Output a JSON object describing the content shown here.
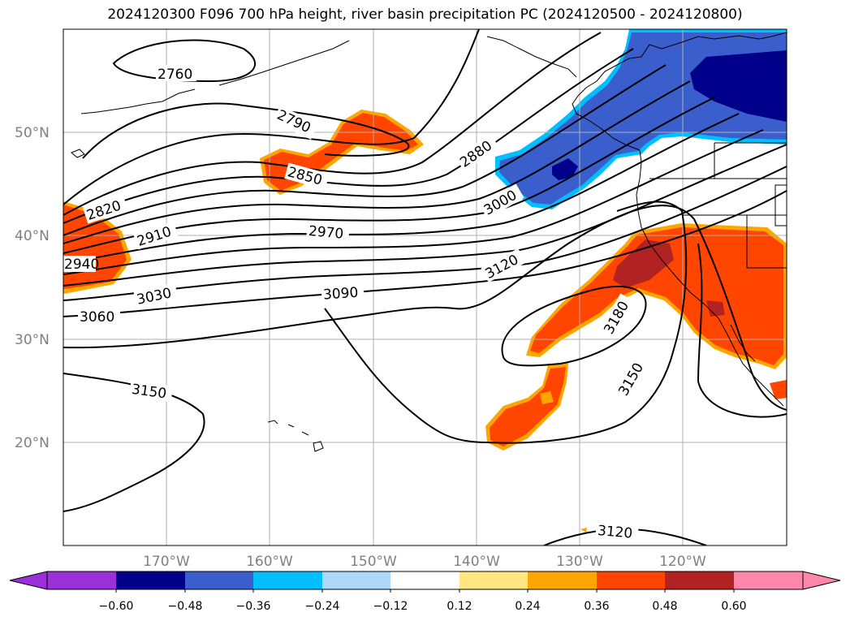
{
  "title": "2024120300 F096 700 hPa height, river basin precipitation PC (2024120500 - 2024120800)",
  "map": {
    "lat_labels": [
      "50°N",
      "40°N",
      "30°N",
      "20°N"
    ],
    "lon_labels": [
      "170°W",
      "160°W",
      "150°W",
      "140°W",
      "130°W",
      "120°W"
    ],
    "contour_labels": [
      "2760",
      "2790",
      "2820",
      "2850",
      "2880",
      "2910",
      "2940",
      "2970",
      "3000",
      "3030",
      "3060",
      "3090",
      "3120",
      "3150",
      "3180",
      "3150",
      "3120"
    ],
    "colors": {
      "pos_strong": "#b22222",
      "pos": "#ff4500",
      "pos_weak": "#ffa500",
      "neg_strong": "#00008b",
      "neg": "#3a5fcd",
      "neg_weak": "#00bfff"
    }
  },
  "colorbar": {
    "ticks": [
      "−0.60",
      "−0.48",
      "−0.36",
      "−0.24",
      "−0.12",
      "0.12",
      "0.24",
      "0.36",
      "0.48",
      "0.60"
    ],
    "colors": [
      "#9b30d9",
      "#00008b",
      "#3a5fcd",
      "#00bfff",
      "#add8f7",
      "#ffffff",
      "#ffe680",
      "#ffa500",
      "#ff4500",
      "#b22222",
      "#ff88aa"
    ]
  }
}
